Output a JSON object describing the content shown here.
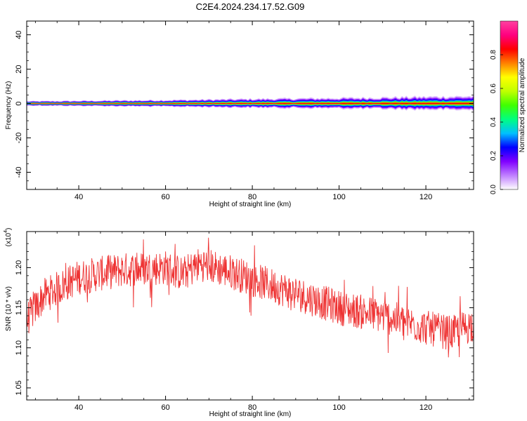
{
  "title": "C2E4.2024.234.17.52.G09",
  "chart_data": [
    {
      "type": "heatmap",
      "xlabel": "Height of straight line (km)",
      "ylabel": "Frequency (Hz)",
      "xlim": [
        28,
        131
      ],
      "ylim": [
        -50,
        48
      ],
      "x_ticks": [
        40,
        60,
        80,
        100,
        120
      ],
      "x_tick_labels": [
        "40",
        "60",
        "80",
        "100",
        "120"
      ],
      "y_ticks": [
        40,
        20,
        0,
        -20,
        -40
      ],
      "y_tick_labels": [
        "40",
        "20",
        "0",
        "-20",
        "-40"
      ],
      "band_center_hz": 0,
      "band_halfwidth_hz": [
        {
          "x": 30,
          "v": 1.0
        },
        {
          "x": 64,
          "v": 1.6
        },
        {
          "x": 80,
          "v": 2.0
        },
        {
          "x": 100,
          "v": 2.4
        },
        {
          "x": 130,
          "v": 3.2
        }
      ],
      "colorbar": {
        "label": "Normalized spectral amplitude",
        "range": [
          0,
          1
        ],
        "ticks": [
          0.0,
          0.2,
          0.4,
          0.6,
          0.8
        ],
        "tick_labels": [
          "0.0",
          "0.2",
          "0.4",
          "0.6",
          "0.8"
        ],
        "colors": [
          "#ffffff",
          "#c080ff",
          "#8000ff",
          "#0000ff",
          "#00c0ff",
          "#00ff80",
          "#40ff00",
          "#c0ff00",
          "#ffff00",
          "#ff8000",
          "#ff0000",
          "#ff0080",
          "#ff40a0"
        ]
      }
    },
    {
      "type": "line",
      "xlabel": "Height of straight line (km)",
      "ylabel": "SNR (10 * v/v)",
      "multiplier_label": "(x10",
      "multiplier_exp": "4",
      "multiplier_close": ")",
      "xlim": [
        28,
        131
      ],
      "ylim": [
        1.035,
        1.245
      ],
      "x_ticks": [
        40,
        60,
        80,
        100,
        120
      ],
      "x_tick_labels": [
        "40",
        "60",
        "80",
        "100",
        "120"
      ],
      "y_ticks": [
        1.05,
        1.1,
        1.15,
        1.2
      ],
      "y_tick_labels": [
        "1.05",
        "1.10",
        "1.15",
        "1.20"
      ],
      "color": "#ee3333",
      "trend": [
        {
          "x": 28,
          "y": 1.135
        },
        {
          "x": 32,
          "y": 1.165
        },
        {
          "x": 40,
          "y": 1.188
        },
        {
          "x": 50,
          "y": 1.197
        },
        {
          "x": 60,
          "y": 1.2
        },
        {
          "x": 64,
          "y": 1.192
        },
        {
          "x": 68,
          "y": 1.205
        },
        {
          "x": 75,
          "y": 1.195
        },
        {
          "x": 82,
          "y": 1.182
        },
        {
          "x": 90,
          "y": 1.168
        },
        {
          "x": 100,
          "y": 1.15
        },
        {
          "x": 110,
          "y": 1.14
        },
        {
          "x": 120,
          "y": 1.125
        },
        {
          "x": 126,
          "y": 1.118
        },
        {
          "x": 131,
          "y": 1.13
        }
      ],
      "noise_amplitude": 0.022
    }
  ]
}
